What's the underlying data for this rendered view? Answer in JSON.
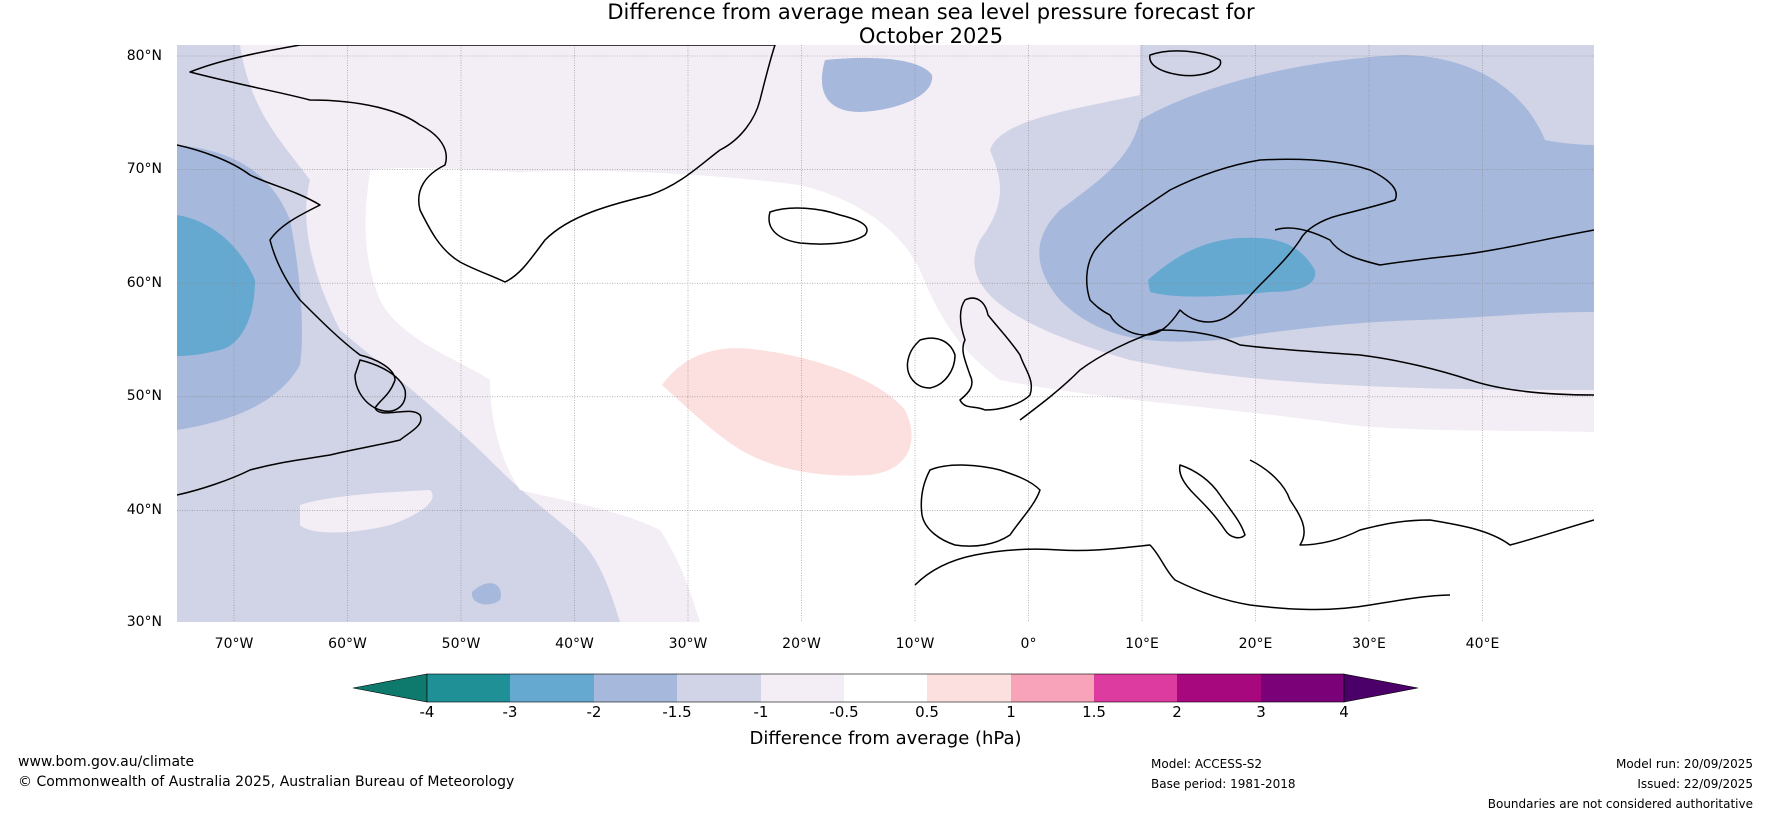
{
  "title_line1": "Difference from average mean sea level pressure forecast for",
  "title_line2": "October 2025",
  "map": {
    "region": "North Atlantic and Europe",
    "latitude_labels": [
      "80°N",
      "70°N",
      "60°N",
      "50°N",
      "40°N",
      "30°N"
    ],
    "longitude_labels": [
      "70°W",
      "60°W",
      "50°W",
      "40°W",
      "30°W",
      "20°W",
      "10°W",
      "0°",
      "10°E",
      "20°E",
      "30°E",
      "40°E"
    ]
  },
  "colorbar": {
    "label": "Difference from average (hPa)",
    "ticks": [
      "-4",
      "-3",
      "-2",
      "-1.5",
      "-1",
      "-0.5",
      "0.5",
      "1",
      "1.5",
      "2",
      "3",
      "4"
    ],
    "colors": {
      "below_-4": "#0e7a6e",
      "-4_to_-3": "#1f9096",
      "-3_to_-2": "#66a9d0",
      "-2_to_-1.5": "#a6b9dc",
      "-1.5_to_-1": "#d1d3e6",
      "-1_to_-0.5": "#f3edf5",
      "-0.5_to_0.5": "#ffffff",
      "0.5_to_1": "#fce0df",
      "1_to_1.5": "#f9a3bb",
      "1.5_to_2": "#de3ba0",
      "2_to_3": "#a8087d",
      "3_to_4": "#7a0178",
      "above_4": "#4a0068"
    }
  },
  "footer": {
    "url": "www.bom.gov.au/climate",
    "copyright": "© Commonwealth of Australia 2025, Australian Bureau of Meteorology",
    "model": "Model: ACCESS-S2",
    "base_period": "Base period: 1981-2018",
    "model_run": "Model run: 20/09/2025",
    "issued": "Issued: 22/09/2025",
    "disclaimer": "Boundaries are not considered authoritative"
  }
}
